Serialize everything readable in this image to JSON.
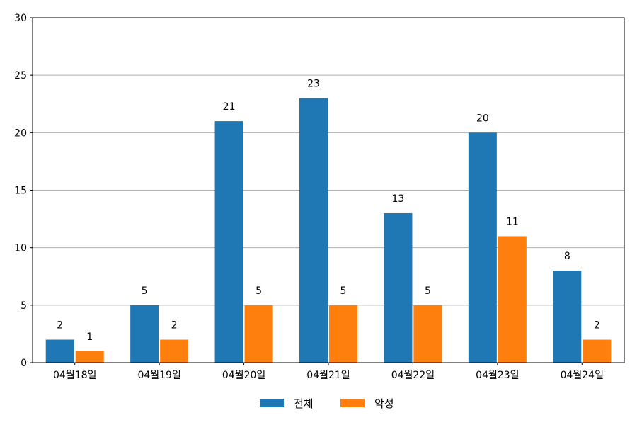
{
  "chart_data": {
    "type": "bar",
    "categories": [
      "04월18일",
      "04월19일",
      "04월20일",
      "04월21일",
      "04월22일",
      "04월23일",
      "04월24일"
    ],
    "series": [
      {
        "name": "전체",
        "color": "#1f77b4",
        "values": [
          2,
          5,
          21,
          23,
          13,
          20,
          8
        ]
      },
      {
        "name": "악성",
        "color": "#ff7f0e",
        "values": [
          1,
          2,
          5,
          5,
          5,
          11,
          2
        ]
      }
    ],
    "ylim": [
      0,
      30
    ],
    "yticks": [
      0,
      5,
      10,
      15,
      20,
      25,
      30
    ],
    "grid": "horizontal",
    "legend_position": "bottom-center",
    "data_labels": true
  }
}
